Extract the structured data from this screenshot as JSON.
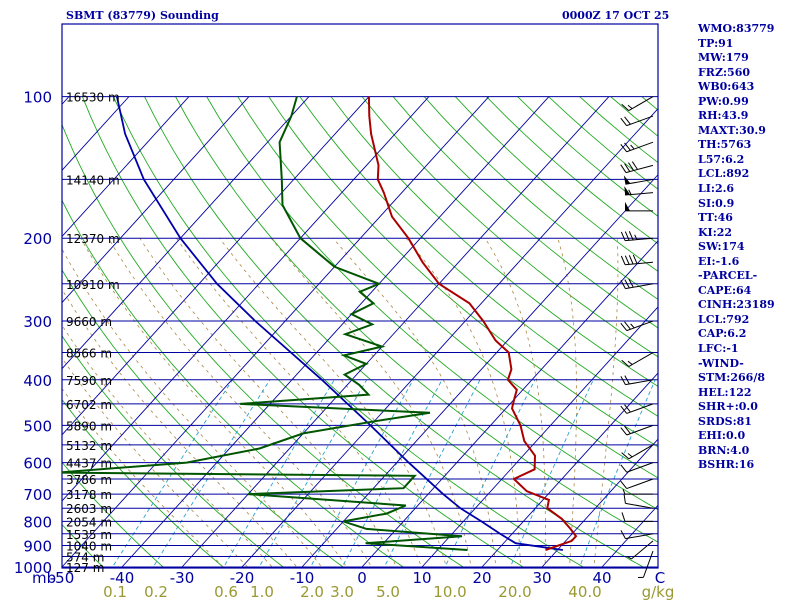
{
  "header": {
    "station": "SBMT (83779) Sounding",
    "time": "0000Z 17 OCT 25"
  },
  "indices": [
    "WMO:83779",
    "TP:91",
    "MW:179",
    "FRZ:560",
    "WB0:643",
    "PW:0.99",
    "RH:43.9",
    "MAXT:30.9",
    "TH:5763",
    "L57:6.2",
    "LCL:892",
    "LI:2.6",
    "SI:0.9",
    "TT:46",
    "KI:22",
    "SW:174",
    "EI:-1.6",
    "-PARCEL-",
    "CAPE:64",
    "CINH:23189",
    "LCL:792",
    "CAP:6.2",
    "LFC:-1",
    "-WIND-",
    "STM:266/8",
    "HEL:122",
    "SHR+:0.0",
    "SRDS:81",
    "EHI:0.0",
    "BRN:4.0",
    "BSHR:16"
  ],
  "colors": {
    "isobar": "#0000a0",
    "isotherm": "#0000a0",
    "dry_adiabat": "#22aa22",
    "moist_adiabat": "#aa8844",
    "mixing_ratio": "#2aa0d0",
    "temperature": "#aa0000",
    "dewpoint": "#005500",
    "parcel": "#0000aa"
  },
  "chart_data": {
    "type": "skew-t",
    "y_axis": {
      "label": "mb",
      "scale": "log",
      "range": [
        1000,
        100
      ],
      "ticks": [
        100,
        200,
        300,
        400,
        500,
        600,
        700,
        800,
        900,
        1000
      ]
    },
    "x_axis": {
      "ticks": [
        -50,
        -40,
        -30,
        -20,
        -10,
        0,
        10,
        20,
        30,
        40
      ],
      "unit_label": "C",
      "range": [
        -50,
        50
      ]
    },
    "mixing_ratio_labels": [
      "0.1",
      "0.2",
      "0.6",
      "1.0",
      "2.0",
      "3.0",
      "5.0",
      "10.0",
      "20.0",
      "40.0",
      "g/kg"
    ],
    "height_labels": [
      {
        "p": 100,
        "label": "16530 m"
      },
      {
        "p": 150,
        "label": "14140 m"
      },
      {
        "p": 200,
        "label": "12370 m"
      },
      {
        "p": 250,
        "label": "10910 m"
      },
      {
        "p": 300,
        "label": "9660 m"
      },
      {
        "p": 350,
        "label": "8566 m"
      },
      {
        "p": 400,
        "label": "7590 m"
      },
      {
        "p": 450,
        "label": "6702 m"
      },
      {
        "p": 500,
        "label": "5890 m"
      },
      {
        "p": 550,
        "label": "5132 m"
      },
      {
        "p": 600,
        "label": "4437 m"
      },
      {
        "p": 650,
        "label": "3786 m"
      },
      {
        "p": 700,
        "label": "3178 m"
      },
      {
        "p": 750,
        "label": "2603 m"
      },
      {
        "p": 800,
        "label": "2054 m"
      },
      {
        "p": 850,
        "label": "1535 m"
      },
      {
        "p": 900,
        "label": "1040 m"
      },
      {
        "p": 950,
        "label": "574 m"
      },
      {
        "p": 1000,
        "label": "127 m"
      }
    ],
    "temperature": [
      {
        "p": 920,
        "t": 28
      },
      {
        "p": 880,
        "t": 31
      },
      {
        "p": 860,
        "t": 31
      },
      {
        "p": 830,
        "t": 29
      },
      {
        "p": 790,
        "t": 26
      },
      {
        "p": 750,
        "t": 22
      },
      {
        "p": 720,
        "t": 21
      },
      {
        "p": 690,
        "t": 16
      },
      {
        "p": 650,
        "t": 12
      },
      {
        "p": 620,
        "t": 14
      },
      {
        "p": 580,
        "t": 12
      },
      {
        "p": 540,
        "t": 8
      },
      {
        "p": 500,
        "t": 5
      },
      {
        "p": 460,
        "t": 1
      },
      {
        "p": 440,
        "t": 0
      },
      {
        "p": 420,
        "t": -1
      },
      {
        "p": 400,
        "t": -4
      },
      {
        "p": 380,
        "t": -5
      },
      {
        "p": 350,
        "t": -8
      },
      {
        "p": 330,
        "t": -12
      },
      {
        "p": 300,
        "t": -17
      },
      {
        "p": 275,
        "t": -22
      },
      {
        "p": 250,
        "t": -30
      },
      {
        "p": 225,
        "t": -36
      },
      {
        "p": 200,
        "t": -42
      },
      {
        "p": 180,
        "t": -48
      },
      {
        "p": 160,
        "t": -53
      },
      {
        "p": 150,
        "t": -56
      },
      {
        "p": 140,
        "t": -58
      },
      {
        "p": 120,
        "t": -64
      },
      {
        "p": 110,
        "t": -67
      },
      {
        "p": 100,
        "t": -70
      }
    ],
    "dewpoint": [
      {
        "p": 920,
        "t": 15
      },
      {
        "p": 890,
        "t": -3
      },
      {
        "p": 860,
        "t": 12
      },
      {
        "p": 830,
        "t": -5
      },
      {
        "p": 800,
        "t": -10
      },
      {
        "p": 770,
        "t": -4
      },
      {
        "p": 740,
        "t": -2
      },
      {
        "p": 700,
        "t": -30
      },
      {
        "p": 680,
        "t": -5
      },
      {
        "p": 640,
        "t": -5
      },
      {
        "p": 630,
        "t": -65
      },
      {
        "p": 600,
        "t": -45
      },
      {
        "p": 560,
        "t": -35
      },
      {
        "p": 520,
        "t": -30
      },
      {
        "p": 490,
        "t": -20
      },
      {
        "p": 470,
        "t": -12
      },
      {
        "p": 450,
        "t": -45
      },
      {
        "p": 430,
        "t": -25
      },
      {
        "p": 410,
        "t": -28
      },
      {
        "p": 390,
        "t": -32
      },
      {
        "p": 370,
        "t": -30
      },
      {
        "p": 355,
        "t": -35
      },
      {
        "p": 340,
        "t": -30
      },
      {
        "p": 320,
        "t": -38
      },
      {
        "p": 305,
        "t": -35
      },
      {
        "p": 290,
        "t": -40
      },
      {
        "p": 275,
        "t": -38
      },
      {
        "p": 260,
        "t": -42
      },
      {
        "p": 250,
        "t": -40
      },
      {
        "p": 230,
        "t": -50
      },
      {
        "p": 200,
        "t": -60
      },
      {
        "p": 170,
        "t": -68
      },
      {
        "p": 150,
        "t": -72
      },
      {
        "p": 125,
        "t": -78
      },
      {
        "p": 110,
        "t": -80
      },
      {
        "p": 100,
        "t": -82
      }
    ],
    "parcel": [
      {
        "p": 920,
        "t": 30.9
      },
      {
        "p": 890,
        "t": 22
      },
      {
        "p": 850,
        "t": 18
      },
      {
        "p": 800,
        "t": 13
      },
      {
        "p": 750,
        "t": 7.5
      },
      {
        "p": 700,
        "t": 2.5
      },
      {
        "p": 600,
        "t": -8
      },
      {
        "p": 500,
        "t": -20
      },
      {
        "p": 400,
        "t": -35
      },
      {
        "p": 300,
        "t": -55
      },
      {
        "p": 250,
        "t": -67
      },
      {
        "p": 200,
        "t": -80
      },
      {
        "p": 150,
        "t": -95
      },
      {
        "p": 120,
        "t": -105
      },
      {
        "p": 100,
        "t": -112
      }
    ],
    "wind_barbs": [
      {
        "p": 925,
        "dir": 200,
        "spd": 5
      },
      {
        "p": 880,
        "dir": 230,
        "spd": 5
      },
      {
        "p": 850,
        "dir": 260,
        "spd": 10
      },
      {
        "p": 800,
        "dir": 270,
        "spd": 10
      },
      {
        "p": 750,
        "dir": 280,
        "spd": 10
      },
      {
        "p": 700,
        "dir": 270,
        "spd": 5
      },
      {
        "p": 650,
        "dir": 250,
        "spd": 10
      },
      {
        "p": 600,
        "dir": 250,
        "spd": 10
      },
      {
        "p": 550,
        "dir": 240,
        "spd": 15
      },
      {
        "p": 500,
        "dir": 250,
        "spd": 20
      },
      {
        "p": 450,
        "dir": 250,
        "spd": 20
      },
      {
        "p": 400,
        "dir": 260,
        "spd": 20
      },
      {
        "p": 350,
        "dir": 240,
        "spd": 15
      },
      {
        "p": 300,
        "dir": 250,
        "spd": 25
      },
      {
        "p": 250,
        "dir": 260,
        "spd": 30
      },
      {
        "p": 225,
        "dir": 265,
        "spd": 40
      },
      {
        "p": 200,
        "dir": 265,
        "spd": 35
      },
      {
        "p": 175,
        "dir": 270,
        "spd": 50
      },
      {
        "p": 160,
        "dir": 265,
        "spd": 55
      },
      {
        "p": 150,
        "dir": 260,
        "spd": 50
      },
      {
        "p": 140,
        "dir": 255,
        "spd": 40
      },
      {
        "p": 125,
        "dir": 250,
        "spd": 25
      },
      {
        "p": 110,
        "dir": 250,
        "spd": 20
      },
      {
        "p": 100,
        "dir": 240,
        "spd": 15
      }
    ]
  }
}
